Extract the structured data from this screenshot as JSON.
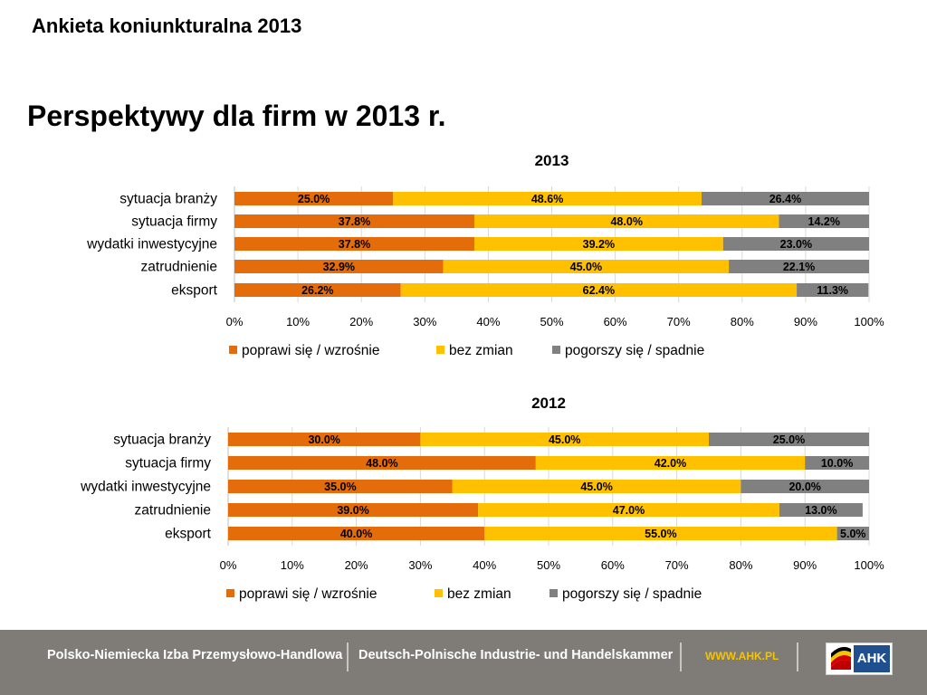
{
  "header": {
    "title": "Ankieta koniunkturalna 2013"
  },
  "slide": {
    "title": "Perspektywy dla firm w 2013 r."
  },
  "colors": {
    "improve": "#e46c0a",
    "nochange": "#ffc000",
    "worse": "#808080",
    "footer_bg": "#7f7c78"
  },
  "chart_data": [
    {
      "type": "bar",
      "orientation": "horizontal-stacked-100",
      "title": "2013",
      "categories": [
        "sytuacja branży",
        "sytuacja firmy",
        "wydatki inwestycyjne",
        "zatrudnienie",
        "eksport"
      ],
      "series": [
        {
          "name": "poprawi się / wzrośnie",
          "color": "#e46c0a",
          "values": [
            25.0,
            37.8,
            37.8,
            32.9,
            26.2
          ]
        },
        {
          "name": "bez zmian",
          "color": "#ffc000",
          "values": [
            48.6,
            48.0,
            39.2,
            45.0,
            62.4
          ]
        },
        {
          "name": "pogorszy się / spadnie",
          "color": "#808080",
          "values": [
            26.4,
            14.2,
            23.0,
            22.1,
            11.3
          ]
        }
      ],
      "xlim": [
        0,
        100
      ],
      "ticks": [
        "0%",
        "10%",
        "20%",
        "30%",
        "40%",
        "50%",
        "60%",
        "70%",
        "80%",
        "90%",
        "100%"
      ],
      "grid": true,
      "legend": "bottom"
    },
    {
      "type": "bar",
      "orientation": "horizontal-stacked-100",
      "title": "2012",
      "categories": [
        "sytuacja branży",
        "sytuacja firmy",
        "wydatki inwestycyjne",
        "zatrudnienie",
        "eksport"
      ],
      "series": [
        {
          "name": "poprawi się / wzrośnie",
          "color": "#e46c0a",
          "values": [
            30.0,
            48.0,
            35.0,
            39.0,
            40.0
          ]
        },
        {
          "name": "bez zmian",
          "color": "#ffc000",
          "values": [
            45.0,
            42.0,
            45.0,
            47.0,
            55.0
          ]
        },
        {
          "name": "pogorszy się / spadnie",
          "color": "#808080",
          "values": [
            25.0,
            10.0,
            20.0,
            13.0,
            5.0
          ]
        }
      ],
      "xlim": [
        0,
        100
      ],
      "ticks": [
        "0%",
        "10%",
        "20%",
        "30%",
        "40%",
        "50%",
        "60%",
        "70%",
        "80%",
        "90%",
        "100%"
      ],
      "grid": true,
      "legend": "bottom"
    }
  ],
  "footer": {
    "org_pl": "Polsko-Niemiecka Izba Przemysłowo-Handlowa",
    "org_de": "Deutsch-Polnische Industrie- und Handelskammer",
    "website": "WWW.AHK.PL",
    "logo_text": "AHK"
  }
}
